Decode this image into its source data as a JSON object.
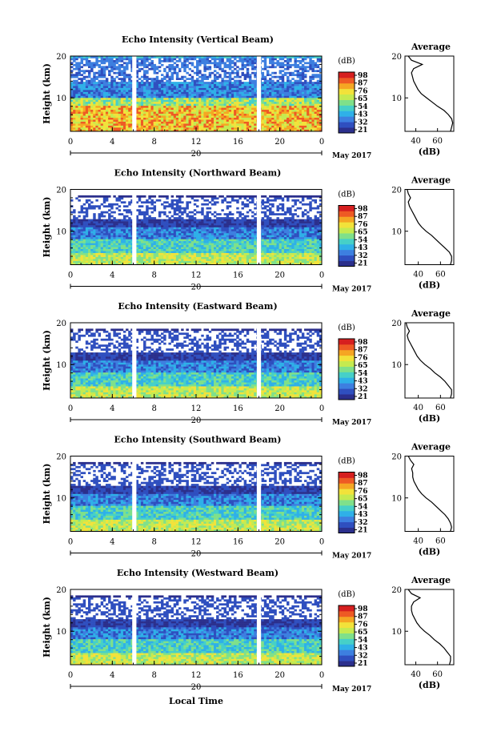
{
  "figure": {
    "x_axis_label": "Local Time",
    "date_marker": "20",
    "date_label": "May 2017"
  },
  "colorbar": {
    "unit": "(dB)",
    "colors": [
      "#2b2f8c",
      "#2f4fbf",
      "#3d7fe0",
      "#2fb0e8",
      "#46d0c8",
      "#7fe08a",
      "#c5ea50",
      "#f2e23a",
      "#f5a623",
      "#ee5a24",
      "#d61f1f"
    ]
  },
  "chart_data": [
    {
      "type": "heatmap",
      "title": "Echo Intensity (Vertical Beam)",
      "ylabel": "Height (km)",
      "x_ticks": [
        "0",
        "4",
        "8",
        "12",
        "16",
        "20",
        "0"
      ],
      "y_ticks": [
        "20",
        "10"
      ],
      "xlim": [
        0,
        24
      ],
      "ylim": [
        2,
        20
      ],
      "data_gaps_hours": [
        [
          5.9,
          6.3
        ],
        [
          17.8,
          18.2
        ]
      ],
      "colorbar_ticks": [
        "98",
        "87",
        "76",
        "65",
        "54",
        "43",
        "32",
        "21"
      ],
      "average_profile": {
        "title": "Average",
        "xlabel": "(dB)",
        "x_ticks": [
          "40",
          "60"
        ],
        "y_ticks": [
          "20",
          "10"
        ],
        "xlim": [
          30,
          75
        ],
        "height_km": [
          2,
          3,
          4,
          5,
          6,
          7,
          8,
          9,
          10,
          11,
          12,
          13,
          14,
          15,
          16,
          17,
          18,
          19,
          20
        ],
        "db": [
          72,
          73,
          74,
          73,
          70,
          66,
          60,
          55,
          50,
          45,
          42,
          40,
          38,
          37,
          36,
          38,
          46,
          36,
          33
        ]
      }
    },
    {
      "type": "heatmap",
      "title": "Echo Intensity (Northward Beam)",
      "ylabel": "Height (km)",
      "x_ticks": [
        "0",
        "4",
        "8",
        "12",
        "16",
        "20",
        "0"
      ],
      "y_ticks": [
        "20",
        "10"
      ],
      "xlim": [
        0,
        24
      ],
      "ylim": [
        2,
        20
      ],
      "data_gaps_hours": [
        [
          5.9,
          6.3
        ],
        [
          17.8,
          18.2
        ]
      ],
      "colorbar_ticks": [
        "98",
        "87",
        "76",
        "65",
        "54",
        "43",
        "32",
        "21"
      ],
      "average_profile": {
        "title": "Average",
        "xlabel": "(dB)",
        "x_ticks": [
          "40",
          "60"
        ],
        "y_ticks": [
          "20",
          "10"
        ],
        "xlim": [
          28,
          72
        ],
        "height_km": [
          2,
          3,
          4,
          5,
          6,
          7,
          8,
          9,
          10,
          11,
          12,
          13,
          14,
          15,
          16,
          17,
          18,
          19,
          20
        ],
        "db": [
          69,
          70,
          70,
          68,
          64,
          60,
          56,
          52,
          47,
          43,
          40,
          38,
          36,
          34,
          32,
          31,
          33,
          31,
          30
        ]
      }
    },
    {
      "type": "heatmap",
      "title": "Echo Intensity (Eastward Beam)",
      "ylabel": "Height (km)",
      "x_ticks": [
        "0",
        "4",
        "8",
        "12",
        "16",
        "20",
        "0"
      ],
      "y_ticks": [
        "20",
        "10"
      ],
      "xlim": [
        0,
        24
      ],
      "ylim": [
        2,
        20
      ],
      "data_gaps_hours": [
        [
          5.9,
          6.3
        ],
        [
          17.8,
          18.2
        ]
      ],
      "colorbar_ticks": [
        "98",
        "87",
        "76",
        "65",
        "54",
        "43",
        "32",
        "21"
      ],
      "average_profile": {
        "title": "Average",
        "xlabel": "(dB)",
        "x_ticks": [
          "40",
          "60"
        ],
        "y_ticks": [
          "20",
          "10"
        ],
        "xlim": [
          28,
          72
        ],
        "height_km": [
          2,
          3,
          4,
          5,
          6,
          7,
          8,
          9,
          10,
          11,
          12,
          13,
          14,
          15,
          16,
          17,
          18,
          19,
          20
        ],
        "db": [
          69,
          70,
          70,
          67,
          64,
          60,
          55,
          51,
          46,
          42,
          39,
          37,
          35,
          33,
          31,
          30,
          32,
          30,
          29
        ]
      }
    },
    {
      "type": "heatmap",
      "title": "Echo Intensity (Southward Beam)",
      "ylabel": "Height (km)",
      "x_ticks": [
        "0",
        "4",
        "8",
        "12",
        "16",
        "20",
        "0"
      ],
      "y_ticks": [
        "20",
        "10"
      ],
      "xlim": [
        0,
        24
      ],
      "ylim": [
        2,
        20
      ],
      "data_gaps_hours": [
        [
          5.9,
          6.3
        ],
        [
          17.8,
          18.2
        ]
      ],
      "colorbar_ticks": [
        "98",
        "87",
        "76",
        "65",
        "54",
        "43",
        "32",
        "21"
      ],
      "average_profile": {
        "title": "Average",
        "xlabel": "(dB)",
        "x_ticks": [
          "40",
          "60"
        ],
        "y_ticks": [
          "20",
          "10"
        ],
        "xlim": [
          28,
          72
        ],
        "height_km": [
          2,
          3,
          4,
          5,
          6,
          7,
          8,
          9,
          10,
          11,
          12,
          13,
          14,
          15,
          16,
          17,
          18,
          19,
          20
        ],
        "db": [
          69,
          70,
          69,
          67,
          64,
          60,
          56,
          52,
          47,
          43,
          40,
          38,
          36,
          35,
          35,
          34,
          36,
          33,
          31
        ]
      }
    },
    {
      "type": "heatmap",
      "title": "Echo Intensity (Westward Beam)",
      "ylabel": "Height (km)",
      "x_ticks": [
        "0",
        "4",
        "8",
        "12",
        "16",
        "20",
        "0"
      ],
      "y_ticks": [
        "20",
        "10"
      ],
      "xlim": [
        0,
        24
      ],
      "ylim": [
        2,
        20
      ],
      "data_gaps_hours": [
        [
          5.9,
          6.3
        ],
        [
          17.8,
          18.2
        ]
      ],
      "colorbar_ticks": [
        "98",
        "87",
        "76",
        "65",
        "54",
        "43",
        "32",
        "21"
      ],
      "average_profile": {
        "title": "Average",
        "xlabel": "(dB)",
        "x_ticks": [
          "40",
          "60"
        ],
        "y_ticks": [
          "20",
          "10"
        ],
        "xlim": [
          30,
          75
        ],
        "height_km": [
          2,
          3,
          4,
          5,
          6,
          7,
          8,
          9,
          10,
          11,
          12,
          13,
          14,
          15,
          16,
          17,
          18,
          19,
          20
        ],
        "db": [
          71,
          72,
          72,
          69,
          66,
          62,
          57,
          53,
          48,
          44,
          41,
          39,
          37,
          36,
          36,
          38,
          44,
          36,
          33
        ]
      }
    }
  ]
}
